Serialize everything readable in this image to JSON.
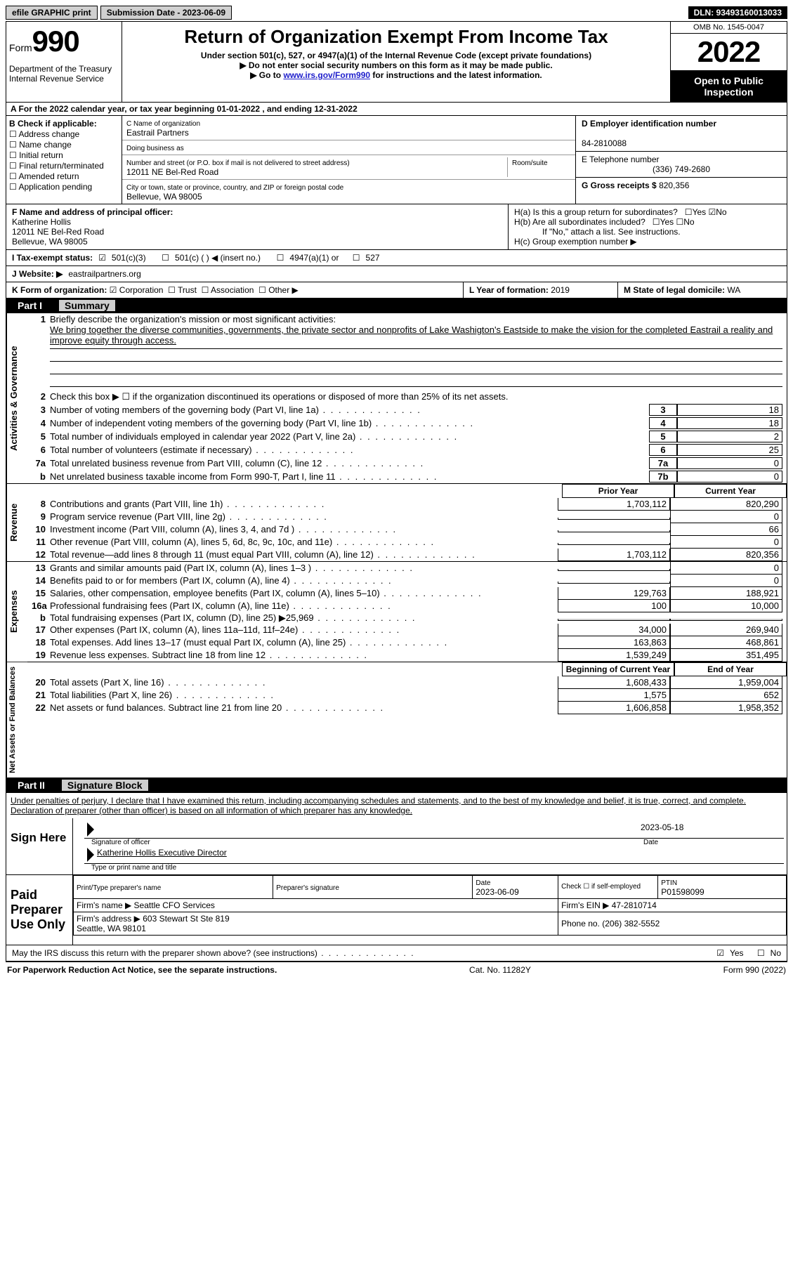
{
  "topbar": {
    "efile": "efile GRAPHIC print",
    "submission": "Submission Date - 2023-06-09",
    "dln": "DLN: 93493160013033"
  },
  "header": {
    "form_word": "Form",
    "form_num": "990",
    "title": "Return of Organization Exempt From Income Tax",
    "sub1": "Under section 501(c), 527, or 4947(a)(1) of the Internal Revenue Code (except private foundations)",
    "sub2": "▶ Do not enter social security numbers on this form as it may be made public.",
    "sub3_pre": "▶ Go to ",
    "sub3_link": "www.irs.gov/Form990",
    "sub3_post": " for instructions and the latest information.",
    "dept": "Department of the Treasury\nInternal Revenue Service",
    "omb": "OMB No. 1545-0047",
    "year": "2022",
    "open": "Open to Public Inspection"
  },
  "rowA": "A For the 2022 calendar year, or tax year beginning 01-01-2022   , and ending 12-31-2022",
  "B": {
    "heading": "B Check if applicable:",
    "opts": [
      "Address change",
      "Name change",
      "Initial return",
      "Final return/terminated",
      "Amended return",
      "Application pending"
    ]
  },
  "C": {
    "name_lbl": "C Name of organization",
    "name": "Eastrail Partners",
    "dba_lbl": "Doing business as",
    "addr_lbl": "Number and street (or P.O. box if mail is not delivered to street address)",
    "room_lbl": "Room/suite",
    "addr": "12011 NE Bel-Red Road",
    "city_lbl": "City or town, state or province, country, and ZIP or foreign postal code",
    "city": "Bellevue, WA  98005"
  },
  "D": {
    "ein_lbl": "D Employer identification number",
    "ein": "84-2810088",
    "tel_lbl": "E Telephone number",
    "tel": "(336) 749-2680",
    "gross_lbl": "G Gross receipts $",
    "gross": "820,356"
  },
  "F": {
    "lbl": "F  Name and address of principal officer:",
    "name": "Katherine Hollis",
    "addr1": "12011 NE Bel-Red Road",
    "addr2": "Bellevue, WA  98005"
  },
  "H": {
    "a": "H(a)  Is this a group return for subordinates?",
    "a_yes": "Yes",
    "a_no": "No",
    "b": "H(b)  Are all subordinates included?",
    "b_yes": "Yes",
    "b_no": "No",
    "b_note": "If \"No,\" attach a list. See instructions.",
    "c": "H(c)  Group exemption number ▶"
  },
  "I": {
    "lbl": "I   Tax-exempt status:",
    "c3": "501(c)(3)",
    "c": "501(c) (  ) ◀ (insert no.)",
    "a1": "4947(a)(1) or",
    "s527": "527"
  },
  "J": {
    "lbl": "J   Website: ▶",
    "val": "eastrailpartners.org"
  },
  "K": {
    "lbl": "K Form of organization:",
    "corp": "Corporation",
    "trust": "Trust",
    "assoc": "Association",
    "other": "Other ▶"
  },
  "L": {
    "lbl": "L Year of formation:",
    "val": "2019"
  },
  "M": {
    "lbl": "M State of legal domicile:",
    "val": "WA"
  },
  "part1": {
    "num": "Part I",
    "title": "Summary"
  },
  "summary": {
    "l1_lbl": "Briefly describe the organization's mission or most significant activities:",
    "l1_text": "We bring together the diverse communities, governments, the private sector and nonprofits of Lake Washigton's Eastside to make the vision for the completed Eastrail a reality and improve equity through access.",
    "l2": "Check this box ▶ ☐  if the organization discontinued its operations or disposed of more than 25% of its net assets.",
    "lines": [
      {
        "n": "3",
        "t": "Number of voting members of the governing body (Part VI, line 1a)",
        "box": "3",
        "v": "18"
      },
      {
        "n": "4",
        "t": "Number of independent voting members of the governing body (Part VI, line 1b)",
        "box": "4",
        "v": "18"
      },
      {
        "n": "5",
        "t": "Total number of individuals employed in calendar year 2022 (Part V, line 2a)",
        "box": "5",
        "v": "2"
      },
      {
        "n": "6",
        "t": "Total number of volunteers (estimate if necessary)",
        "box": "6",
        "v": "25"
      },
      {
        "n": "7a",
        "t": "Total unrelated business revenue from Part VIII, column (C), line 12",
        "box": "7a",
        "v": "0"
      },
      {
        "n": "b",
        "t": "Net unrelated business taxable income from Form 990-T, Part I, line 11",
        "box": "7b",
        "v": "0"
      }
    ]
  },
  "cols": {
    "prior": "Prior Year",
    "current": "Current Year"
  },
  "revenue": [
    {
      "n": "8",
      "t": "Contributions and grants (Part VIII, line 1h)",
      "p": "1,703,112",
      "c": "820,290"
    },
    {
      "n": "9",
      "t": "Program service revenue (Part VIII, line 2g)",
      "p": "",
      "c": "0"
    },
    {
      "n": "10",
      "t": "Investment income (Part VIII, column (A), lines 3, 4, and 7d )",
      "p": "",
      "c": "66"
    },
    {
      "n": "11",
      "t": "Other revenue (Part VIII, column (A), lines 5, 6d, 8c, 9c, 10c, and 11e)",
      "p": "",
      "c": "0"
    },
    {
      "n": "12",
      "t": "Total revenue—add lines 8 through 11 (must equal Part VIII, column (A), line 12)",
      "p": "1,703,112",
      "c": "820,356"
    }
  ],
  "expenses": [
    {
      "n": "13",
      "t": "Grants and similar amounts paid (Part IX, column (A), lines 1–3 )",
      "p": "",
      "c": "0"
    },
    {
      "n": "14",
      "t": "Benefits paid to or for members (Part IX, column (A), line 4)",
      "p": "",
      "c": "0"
    },
    {
      "n": "15",
      "t": "Salaries, other compensation, employee benefits (Part IX, column (A), lines 5–10)",
      "p": "129,763",
      "c": "188,921"
    },
    {
      "n": "16a",
      "t": "Professional fundraising fees (Part IX, column (A), line 11e)",
      "p": "100",
      "c": "10,000"
    },
    {
      "n": "b",
      "t": "Total fundraising expenses (Part IX, column (D), line 25) ▶25,969",
      "p": "",
      "c": "",
      "shade": true
    },
    {
      "n": "17",
      "t": "Other expenses (Part IX, column (A), lines 11a–11d, 11f–24e)",
      "p": "34,000",
      "c": "269,940"
    },
    {
      "n": "18",
      "t": "Total expenses. Add lines 13–17 (must equal Part IX, column (A), line 25)",
      "p": "163,863",
      "c": "468,861"
    },
    {
      "n": "19",
      "t": "Revenue less expenses. Subtract line 18 from line 12",
      "p": "1,539,249",
      "c": "351,495"
    }
  ],
  "netassets_hdr": {
    "p": "Beginning of Current Year",
    "c": "End of Year"
  },
  "netassets": [
    {
      "n": "20",
      "t": "Total assets (Part X, line 16)",
      "p": "1,608,433",
      "c": "1,959,004"
    },
    {
      "n": "21",
      "t": "Total liabilities (Part X, line 26)",
      "p": "1,575",
      "c": "652"
    },
    {
      "n": "22",
      "t": "Net assets or fund balances. Subtract line 21 from line 20",
      "p": "1,606,858",
      "c": "1,958,352"
    }
  ],
  "part2": {
    "num": "Part II",
    "title": "Signature Block"
  },
  "sig": {
    "decl": "Under penalties of perjury, I declare that I have examined this return, including accompanying schedules and statements, and to the best of my knowledge and belief, it is true, correct, and complete. Declaration of preparer (other than officer) is based on all information of which preparer has any knowledge.",
    "sign_here": "Sign Here",
    "sig_officer": "Signature of officer",
    "date": "Date",
    "date_val": "2023-05-18",
    "typed": "Katherine Hollis  Executive Director",
    "typed_lbl": "Type or print name and title",
    "paid": "Paid Preparer Use Only",
    "p_name_lbl": "Print/Type preparer's name",
    "p_sig_lbl": "Preparer's signature",
    "p_date_lbl": "Date",
    "p_date": "2023-06-09",
    "p_check": "Check ☐ if self-employed",
    "ptin_lbl": "PTIN",
    "ptin": "P01598099",
    "firm_name_lbl": "Firm's name   ▶",
    "firm_name": "Seattle CFO Services",
    "firm_ein_lbl": "Firm's EIN ▶",
    "firm_ein": "47-2810714",
    "firm_addr_lbl": "Firm's address ▶",
    "firm_addr": "603 Stewart St Ste 819\nSeattle, WA  98101",
    "phone_lbl": "Phone no.",
    "phone": "(206) 382-5552",
    "may_irs": "May the IRS discuss this return with the preparer shown above? (see instructions)",
    "yes": "Yes",
    "no": "No"
  },
  "footer": {
    "left": "For Paperwork Reduction Act Notice, see the separate instructions.",
    "mid": "Cat. No. 11282Y",
    "right": "Form 990 (2022)"
  },
  "colors": {
    "black": "#000000",
    "gray_btn": "#d0d0d0",
    "link": "#2020cc"
  }
}
